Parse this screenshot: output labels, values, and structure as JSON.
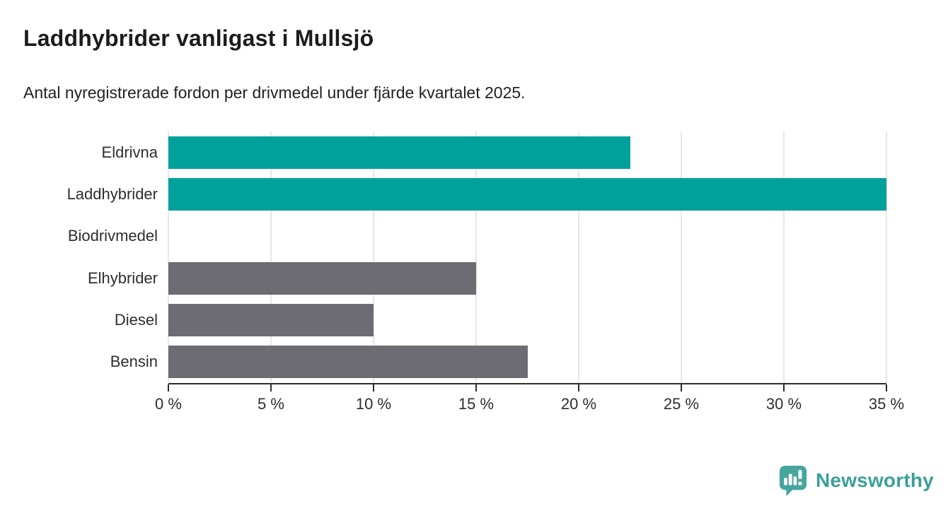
{
  "header": {
    "title": "Laddhybrider vanligast i Mullsjö",
    "subtitle": "Antal nyregistrerade fordon per drivmedel under fjärde kvartalet 2025."
  },
  "chart_data": {
    "type": "bar",
    "orientation": "horizontal",
    "title": "Laddhybrider vanligast i Mullsjö",
    "subtitle": "Antal nyregistrerade fordon per drivmedel under fjärde kvartalet 2025.",
    "categories": [
      "Eldrivna",
      "Laddhybrider",
      "Biodrivmedel",
      "Elhybrider",
      "Diesel",
      "Bensin"
    ],
    "values": [
      22.5,
      35,
      0,
      15,
      10,
      17.5
    ],
    "unit": "%",
    "bar_colors": [
      "#00a19a",
      "#00a19a",
      "#6d6c73",
      "#6d6c73",
      "#6d6c73",
      "#6d6c73"
    ],
    "highlight_color": "#00a19a",
    "default_color": "#6d6c73",
    "xlabel": "",
    "ylabel": "",
    "xlim": [
      0,
      35
    ],
    "x_ticks": [
      0,
      5,
      10,
      15,
      20,
      25,
      30,
      35
    ],
    "x_tick_labels": [
      "0 %",
      "5 %",
      "10 %",
      "15 %",
      "20 %",
      "25 %",
      "30 %",
      "35 %"
    ],
    "grid": "vertical",
    "gridline_color": "#e7e7e7",
    "axis_color": "#2c2c2c",
    "legend": "none"
  },
  "footer": {
    "brand": "Newsworthy",
    "brand_color": "#3b9f99",
    "logo_icon_color": "#46a59e",
    "logo_icon": "newsworthy-speech-bubble-chart-icon"
  }
}
